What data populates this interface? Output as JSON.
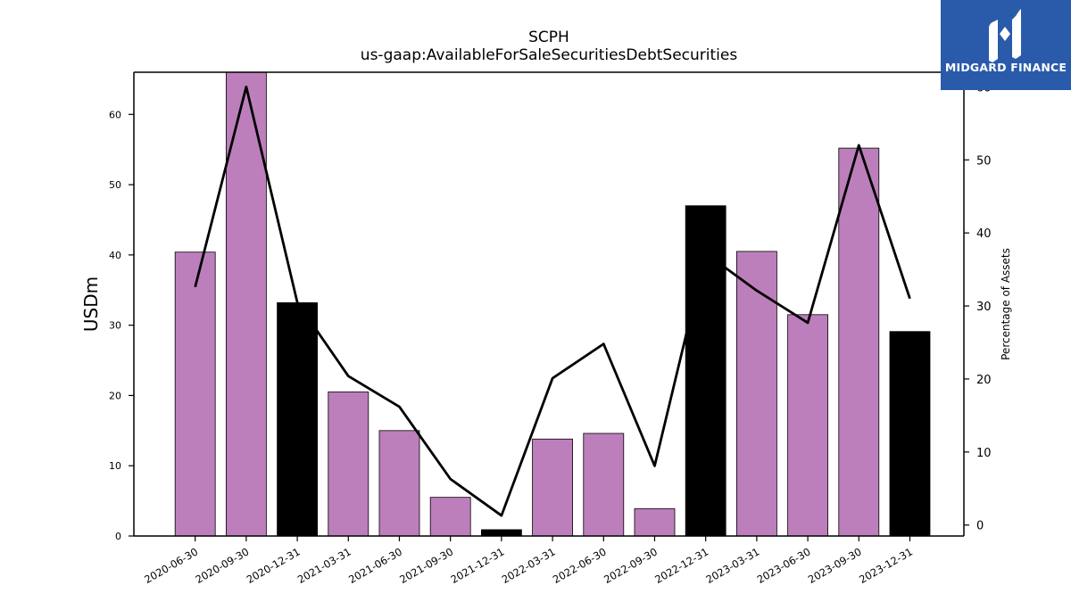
{
  "chart_data": {
    "type": "bar+line",
    "title": "SCPH",
    "subtitle": "us-gaap:AvailableForSaleSecuritiesDebtSecurities",
    "ylabel": "USDm",
    "y2label": "Percentage of Assets",
    "categories": [
      "2020-06-30",
      "2020-09-30",
      "2020-12-31",
      "2021-03-31",
      "2021-06-30",
      "2021-09-30",
      "2021-12-31",
      "2022-03-31",
      "2022-06-30",
      "2022-09-30",
      "2022-12-31",
      "2023-03-31",
      "2023-06-30",
      "2023-09-30",
      "2023-12-31"
    ],
    "bar_values": [
      40.4,
      66.0,
      33.2,
      20.5,
      15.0,
      5.5,
      0.9,
      13.8,
      14.6,
      3.9,
      47.0,
      40.5,
      31.5,
      55.2,
      29.1
    ],
    "bar_colors": [
      "#bc7fbc",
      "#bc7fbc",
      "#000000",
      "#bc7fbc",
      "#bc7fbc",
      "#bc7fbc",
      "#000000",
      "#bc7fbc",
      "#bc7fbc",
      "#bc7fbc",
      "#000000",
      "#bc7fbc",
      "#bc7fbc",
      "#bc7fbc",
      "#000000"
    ],
    "line_values": [
      32.6,
      60.0,
      30.5,
      20.4,
      16.2,
      6.3,
      1.3,
      20.1,
      24.8,
      8.1,
      37.2,
      32.1,
      27.7,
      52.0,
      31.0
    ],
    "ylim": [
      0,
      66
    ],
    "y2lim": [
      -1.5,
      62
    ],
    "yticks": [
      0,
      10,
      20,
      30,
      40,
      50,
      60
    ],
    "y2ticks": [
      0,
      10,
      20,
      30,
      40,
      50,
      60
    ],
    "grid": false,
    "legend": "none"
  },
  "logo": {
    "brand": "MIDGARD FINANCE",
    "background": "#2a5bab"
  }
}
